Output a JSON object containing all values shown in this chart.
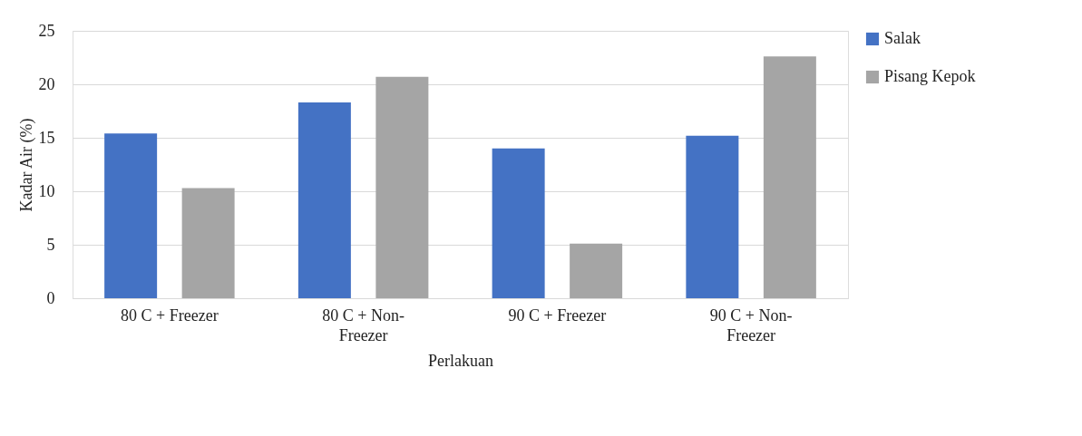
{
  "chart_data": {
    "type": "bar",
    "xlabel": "Perlakuan",
    "ylabel": "Kadar Air (%)",
    "categories": [
      "80 C + Freezer",
      "80 C + Non-Freezer",
      "90 C + Freezer",
      "90 C + Non-Freezer"
    ],
    "series": [
      {
        "name": "Salak",
        "color": "#4472c4",
        "values": [
          15.4,
          18.3,
          14.0,
          15.2
        ]
      },
      {
        "name": "Pisang Kepok",
        "color": "#a5a5a5",
        "values": [
          10.3,
          20.7,
          5.1,
          22.6
        ]
      }
    ],
    "ylim": [
      0,
      25
    ],
    "yticks": [
      0,
      5,
      10,
      15,
      20,
      25
    ],
    "grid": "y",
    "legend": "right"
  }
}
